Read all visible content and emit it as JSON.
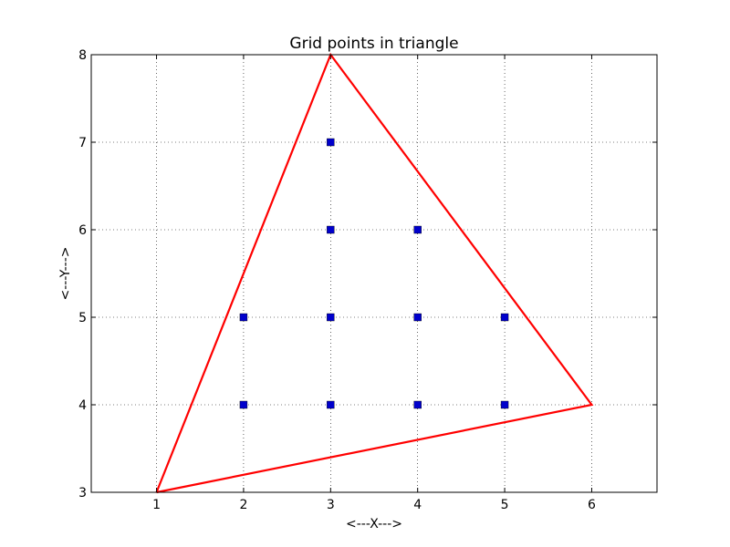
{
  "chart_data": {
    "type": "scatter",
    "title": "Grid points in triangle",
    "xlabel": "<---X--->",
    "ylabel": "<---Y--->",
    "xlim": [
      0.25,
      6.75
    ],
    "ylim": [
      3,
      8
    ],
    "xticks": [
      1,
      2,
      3,
      4,
      5,
      6
    ],
    "yticks": [
      3,
      4,
      5,
      6,
      7,
      8
    ],
    "grid": true,
    "triangle": {
      "color": "#ff0000",
      "vertices": [
        [
          1,
          3
        ],
        [
          3,
          8
        ],
        [
          6,
          4
        ]
      ]
    },
    "points": {
      "color": "#0000cc",
      "x": [
        3,
        3,
        4,
        2,
        3,
        4,
        5,
        2,
        3,
        4,
        5
      ],
      "y": [
        7,
        6,
        6,
        5,
        5,
        5,
        5,
        4,
        4,
        4,
        4
      ]
    }
  }
}
